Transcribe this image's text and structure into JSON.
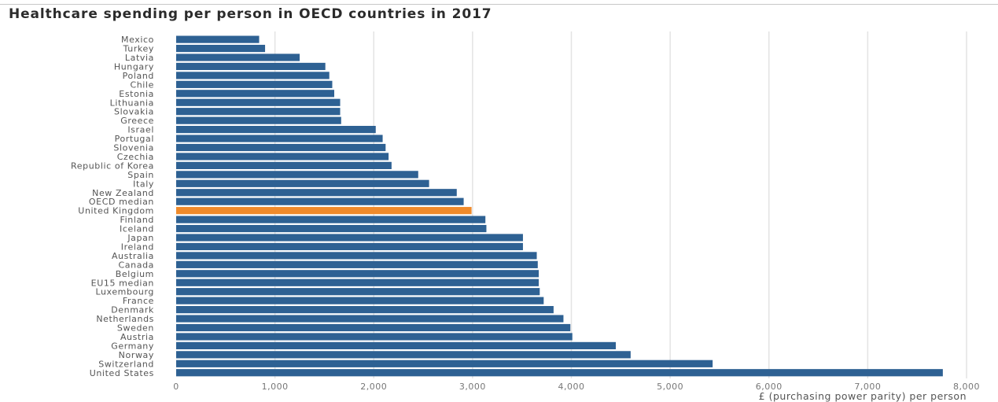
{
  "chart_data": {
    "type": "bar",
    "orientation": "horizontal",
    "title": "Healthcare spending per person in OECD countries in 2017",
    "xlabel": "£ (purchasing power parity) per person",
    "ylabel": "",
    "xlim": [
      0,
      8000
    ],
    "xticks": [
      0,
      1000,
      2000,
      3000,
      4000,
      5000,
      6000,
      7000,
      8000
    ],
    "xtick_labels": [
      "0",
      "1,000",
      "2,000",
      "3,000",
      "4,000",
      "5,000",
      "6,000",
      "7,000",
      "8,000"
    ],
    "grid": "vertical",
    "colors": {
      "default": "#2e6193",
      "highlight": "#ef8a2b",
      "grid": "#e3e3e3"
    },
    "highlighted_category": "United Kingdom",
    "categories": [
      "Mexico",
      "Turkey",
      "Latvia",
      "Hungary",
      "Poland",
      "Chile",
      "Estonia",
      "Lithuania",
      "Slovakia",
      "Greece",
      "Israel",
      "Portugal",
      "Slovenia",
      "Czechia",
      "Republic of Korea",
      "Spain",
      "Italy",
      "New Zealand",
      "OECD median",
      "United Kingdom",
      "Finland",
      "Iceland",
      "Japan",
      "Ireland",
      "Australia",
      "Canada",
      "Belgium",
      "EU15 median",
      "Luxembourg",
      "France",
      "Denmark",
      "Netherlands",
      "Sweden",
      "Austria",
      "Germany",
      "Norway",
      "Switzerland",
      "United States"
    ],
    "values": [
      840,
      900,
      1250,
      1510,
      1550,
      1580,
      1600,
      1660,
      1660,
      1670,
      2020,
      2090,
      2120,
      2150,
      2180,
      2450,
      2560,
      2840,
      2910,
      2990,
      3130,
      3140,
      3510,
      3510,
      3650,
      3660,
      3670,
      3670,
      3680,
      3720,
      3820,
      3920,
      3990,
      4010,
      4450,
      4600,
      5430,
      7760
    ]
  }
}
